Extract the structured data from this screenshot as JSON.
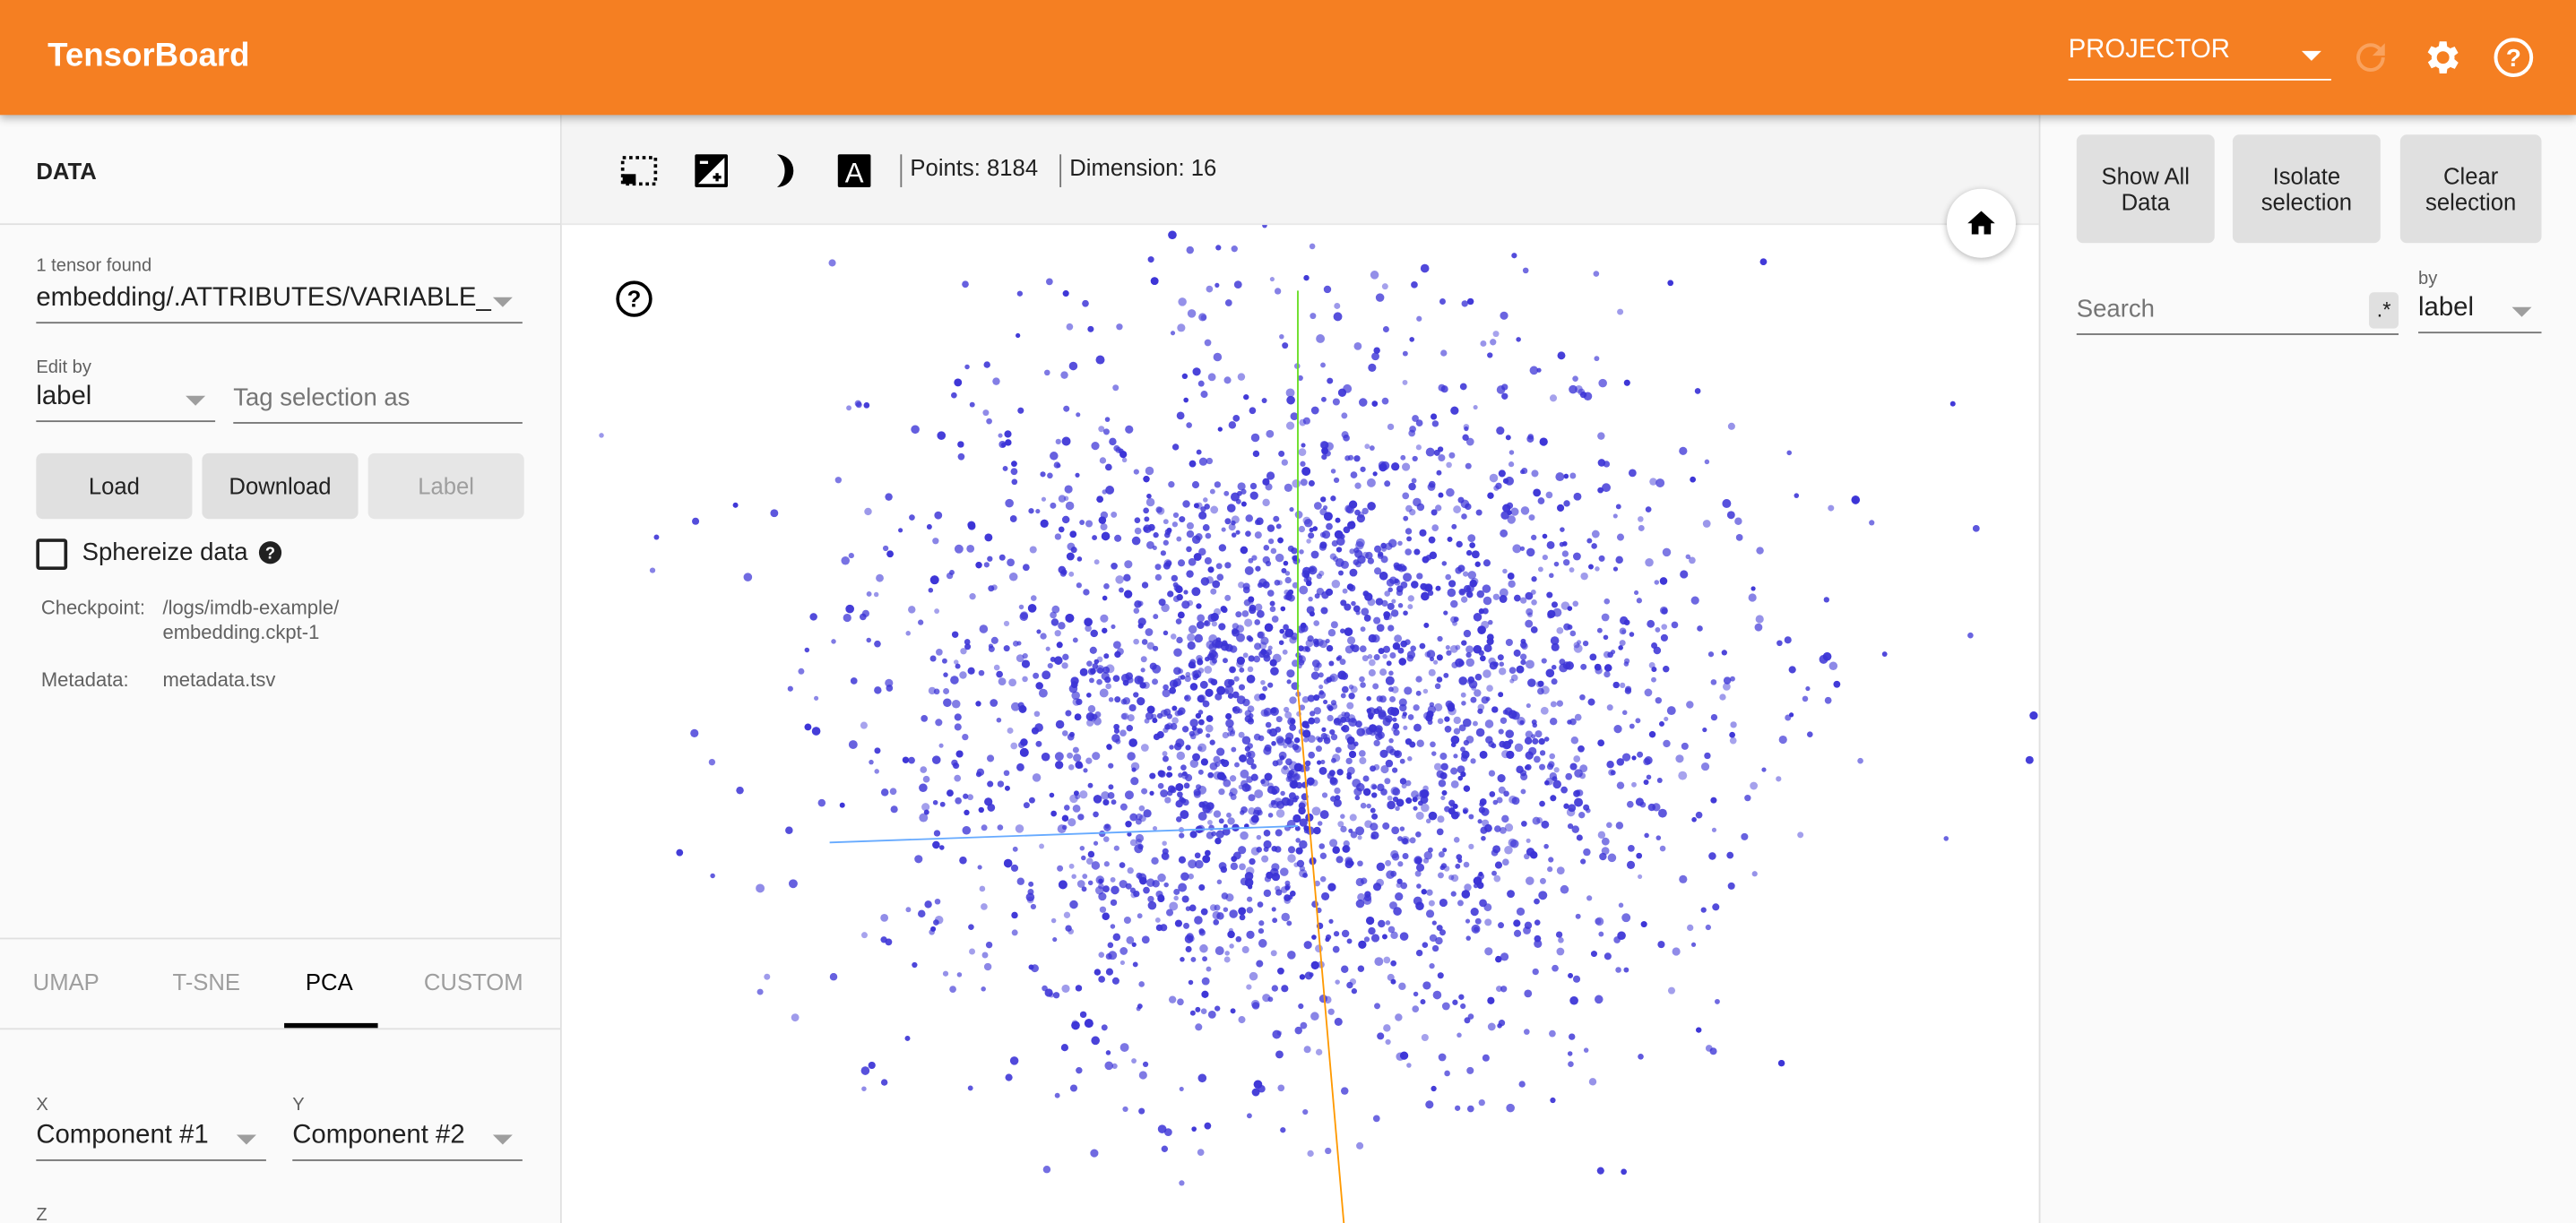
{
  "header": {
    "title": "TensorBoard",
    "plugin": "PROJECTOR",
    "icons": [
      "refresh-icon",
      "settings-icon",
      "help-icon"
    ],
    "color": "#f57f22"
  },
  "data_panel": {
    "title": "DATA",
    "tensor_count": "1 tensor found",
    "tensor": "embedding/.ATTRIBUTES/VARIABLE_",
    "edit_by_label": "Edit by",
    "edit_by": "label",
    "tag_placeholder": "Tag selection as",
    "buttons": {
      "load": "Load",
      "download": "Download",
      "label": "Label"
    },
    "sphereize": {
      "label": "Sphereize data",
      "checked": false
    },
    "checkpoint_label": "Checkpoint:",
    "checkpoint_line1": "/logs/imdb-example/",
    "checkpoint_line2": "embedding.ckpt-1",
    "metadata_label": "Metadata:",
    "metadata": "metadata.tsv"
  },
  "projection": {
    "tabs": [
      {
        "label": "UMAP"
      },
      {
        "label": "T-SNE"
      },
      {
        "label": "PCA",
        "active": true
      },
      {
        "label": "CUSTOM"
      }
    ],
    "x_label": "X",
    "x_value": "Component #1",
    "y_label": "Y",
    "y_value": "Component #2",
    "z_label": "Z"
  },
  "toolbar": {
    "points": "Points: 8184",
    "dimension": "Dimension: 16",
    "icons": [
      "select-rectangle-icon",
      "night-mode-icon",
      "moon-icon",
      "label-icon"
    ]
  },
  "scatter": {
    "point_color": "#3b33d6",
    "axis_colors": {
      "x": "#ff9900",
      "y": "#66dd22",
      "z": "#66aaff"
    }
  },
  "inspector": {
    "buttons": {
      "show_all": "Show All Data",
      "isolate": "Isolate selection",
      "clear": "Clear selection"
    },
    "search_placeholder": "Search",
    "regex": ".*",
    "by_label": "by",
    "by_value": "label"
  }
}
